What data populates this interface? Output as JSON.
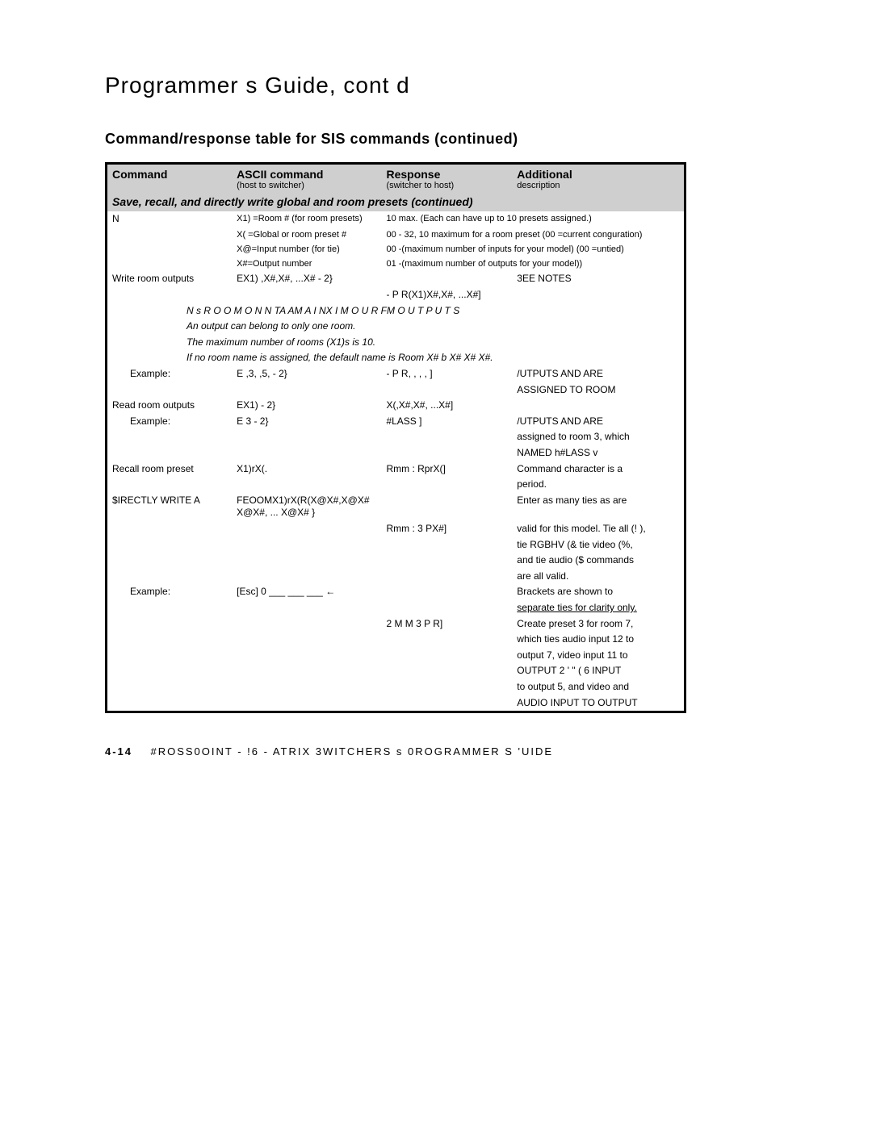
{
  "page_title": "Programmer s Guide, cont d",
  "section_title": "Command/response table for SIS commands (continued)",
  "headers": {
    "c1a": "Command",
    "c1b": "",
    "c2a": "ASCII command",
    "c2b": "(host to switcher)",
    "c3a": "Response",
    "c3b": "(switcher to host)",
    "c4a": "Additional",
    "c4b": "description"
  },
  "group_header": "Save, recall, and directly write global and room presets (continued)",
  "legend": {
    "l1a": "N",
    "l1b": "X1) =Room # (for room presets)",
    "l1c": "10 max. (Each can have up to 10 presets assigned.)",
    "l2b": "X( =Global or room preset #",
    "l2c": "00 - 32, 10 maximum for a room preset (00 =current conguration)",
    "l3b": "X@=Input number (for tie)",
    "l3c": "00 -(maximum number of inputs for your model) (00 =untied)",
    "l4b": "X#=Output number",
    "l4c": "01 -(maximum number of outputs for your model))"
  },
  "rows": [
    {
      "c1": "Write room outputs",
      "c2": "EX1) ,X#,X#, ...X# - 2}",
      "c3": "",
      "c4": "3EE NOTES",
      "sub": [
        {
          "c1": "",
          "c2": "",
          "c3": "- P R(X1)X#,X#, ...X#]",
          "c4": ""
        }
      ],
      "notes": [
        "N    s  R O O M O N  N TA AM A I NX I M O U R FM O U T P U T S",
        "An output can belong to only one room.",
        "The maximum number of rooms (X1)s is 10.",
        "If no room name is assigned, the default name is Room X# b X#  X#  X#."
      ]
    },
    {
      "c1": "Example:",
      "c2": "E  ,3, ,5, - 2}",
      "c3": "- P R, , , , ]",
      "c4": "/UTPUTS    AND   ARE",
      "c4b": "ASSIGNED TO ROOM"
    },
    {
      "c1": "Read room outputs",
      "c2": "EX1)  - 2}",
      "c3": "X(,X#,X#, ...X#]",
      "c4": ""
    },
    {
      "c1": "Example:",
      "c2": "E  3 - 2}",
      "c3": "#LASS      ]",
      "c4": "/UTPUTS    AND   ARE",
      "c4b": "assigned to room 3, which",
      "c4c": "NAMED h#LASS  v"
    },
    {
      "c1": "Recall room preset",
      "c2": "X1)rX(.",
      "c3": "Rmm :   RprX(]",
      "c4": "Command character is a",
      "c4b": "period."
    },
    {
      "c1": "$IRECTLY WRITE A",
      "c2": "FEOOMX1)rX(R(X@X#,X@X# X@X#, ... X@X# }",
      "c3": "",
      "c4": "Enter as many ties as are",
      "sub2": [
        {
          "c3": "Rmm :   3 PX#]",
          "c4": "valid for this model. Tie all (! ),"
        },
        {
          "c4": "tie RGBHV (& tie video (%,"
        },
        {
          "c4": "and tie audio ($ commands"
        },
        {
          "c4": "are all valid."
        }
      ]
    },
    {
      "c1": "Example:",
      "c2": "[Esc]  0 ___ ___ ___  ←",
      "c3": "",
      "c4": "Brackets are shown to",
      "sub2": [
        {
          "c4": "separate ties for clarity only."
        },
        {
          "c3": "2 M M   3 P R]",
          "c4": "Create preset 3 for room 7,"
        },
        {
          "c4": "which ties audio input 12 to"
        },
        {
          "c4": "output 7, video input 11 to"
        },
        {
          "c4": "OUTPUT   2 ' \" ( 6  INPUT"
        },
        {
          "c4": "to output 5, and video and"
        },
        {
          "c4": "AUDIO INPUT   TO  OUTPUT"
        }
      ]
    }
  ],
  "footer": {
    "page": "4-14",
    "text": "#ROSS0OINT   - !6  - ATRIX 3WITCHERS s 0ROGRAMMER S 'UIDE"
  }
}
